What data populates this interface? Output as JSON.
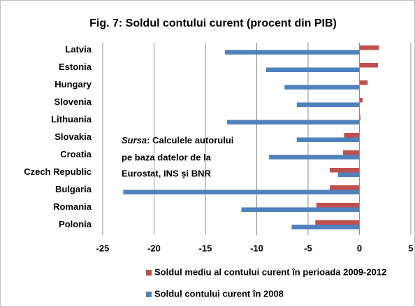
{
  "chart_data": {
    "type": "hbar",
    "title": "Fig. 7: Soldul contului curent (procent din PIB)",
    "categories": [
      "Latvia",
      "Estonia",
      "Hungary",
      "Slovenia",
      "Lithuania",
      "Slovakia",
      "Croatia",
      "Czech Republic",
      "Bulgaria",
      "Romania",
      "Polonia"
    ],
    "series": [
      {
        "name": "Soldul mediu al contului curent în perioada 2009-2012",
        "color": "#c0504d",
        "values": [
          1.9,
          1.8,
          0.8,
          0.3,
          0.1,
          -1.5,
          -1.6,
          -2.9,
          -2.9,
          -4.2,
          -4.3
        ]
      },
      {
        "name": "Soldul contului curent în 2008",
        "color": "#4f81bd",
        "values": [
          -13.1,
          -9.1,
          -7.3,
          -6.1,
          -12.9,
          -6.1,
          -8.8,
          -2.1,
          -23.0,
          -11.5,
          -6.6
        ]
      }
    ],
    "xlim": [
      -25,
      5
    ],
    "xticks": [
      -25,
      -20,
      -15,
      -10,
      -5,
      0,
      5
    ],
    "grid": true,
    "annotation": {
      "italic": "Sursa",
      "lines": [
        ": Calculele autorului",
        "pe baza datelor de la",
        "Eurostat, INS și BNR"
      ]
    }
  }
}
